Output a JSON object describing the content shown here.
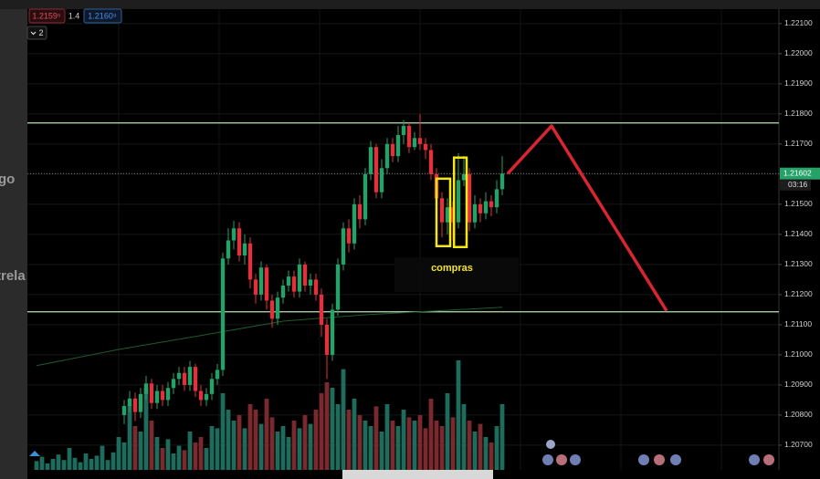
{
  "side_texts": [
    "go",
    "trela"
  ],
  "header": {
    "bid": "1.2159⁵",
    "spread": "1.4",
    "ask": "1.2160⁹",
    "interval": "2"
  },
  "chart_data": {
    "type": "candlestick",
    "xlim": [
      -1.667,
      135.5
    ],
    "ylim": [
      1.20618,
      1.22148
    ],
    "yticks": [
      {
        "value": 1.221,
        "label": "1.22100"
      },
      {
        "value": 1.22,
        "label": "1.22000"
      },
      {
        "value": 1.219,
        "label": "1.21900"
      },
      {
        "value": 1.218,
        "label": "1.21800"
      },
      {
        "value": 1.217,
        "label": "1.21700"
      },
      {
        "value": 1.216,
        "label": "1.21600"
      },
      {
        "value": 1.215,
        "label": "1.21500"
      },
      {
        "value": 1.214,
        "label": "1.21400"
      },
      {
        "value": 1.213,
        "label": "1.21300"
      },
      {
        "value": 1.212,
        "label": "1.21200"
      },
      {
        "value": 1.211,
        "label": "1.21100"
      },
      {
        "value": 1.21,
        "label": "1.21000"
      },
      {
        "value": 1.209,
        "label": "1.20900"
      },
      {
        "value": 1.208,
        "label": "1.20800"
      },
      {
        "value": 1.207,
        "label": "1.20700"
      }
    ],
    "grid": true,
    "up_color": "#26a269",
    "down_color": "#e0323c",
    "open": [
      null,
      null,
      null,
      null,
      null,
      null,
      null,
      null,
      null,
      null,
      null,
      null,
      null,
      null,
      null,
      null,
      1.208,
      1.2083,
      1.20855,
      1.2081,
      1.2087,
      1.20905,
      1.2084,
      1.2088,
      1.2085,
      1.2089,
      1.2092,
      1.2094,
      1.209,
      1.2096,
      1.2088,
      1.2085,
      1.2087,
      1.2092,
      1.2095,
      1.2132,
      1.2138,
      1.2142,
      1.2133,
      1.2137,
      1.2125,
      1.212,
      1.2129,
      1.2118,
      1.2112,
      1.2119,
      1.2123,
      1.2126,
      1.2121,
      1.213,
      1.2123,
      1.2125,
      1.212,
      1.211,
      1.21,
      1.2115,
      1.213,
      1.2142,
      1.2137,
      1.215,
      1.2145,
      1.216,
      1.2169,
      1.2154,
      1.2162,
      1.217,
      1.2166,
      1.2173,
      1.2176,
      1.2169,
      1.2172,
      1.217,
      1.2168,
      1.216,
      1.2152,
      1.2144,
      1.2149,
      1.2144,
      1.2158,
      1.216,
      1.2144,
      1.215,
      1.2147,
      1.2151,
      1.2149,
      1.2155
    ],
    "high": [
      null,
      null,
      null,
      null,
      null,
      null,
      null,
      null,
      null,
      null,
      null,
      null,
      null,
      null,
      null,
      null,
      1.2085,
      1.2088,
      1.20875,
      1.2089,
      1.2093,
      1.2092,
      1.209,
      1.209,
      1.2091,
      1.2094,
      1.2096,
      1.2096,
      1.2098,
      1.2097,
      1.209,
      1.2089,
      1.2094,
      1.2097,
      1.2134,
      1.2142,
      1.21445,
      1.2144,
      1.214,
      1.2139,
      1.2127,
      1.2131,
      1.213,
      1.212,
      1.2121,
      1.2125,
      1.2128,
      1.2128,
      1.2132,
      1.2131,
      1.2127,
      1.2127,
      1.2122,
      1.2112,
      1.2117,
      1.2132,
      1.2144,
      1.2145,
      1.2152,
      1.2153,
      1.2162,
      1.2171,
      1.217,
      1.2165,
      1.2172,
      1.2172,
      1.2176,
      1.2178,
      1.2177,
      1.2174,
      1.218,
      1.2172,
      1.217,
      1.2162,
      1.2154,
      1.2152,
      1.2151,
      1.2167,
      1.2166,
      1.2162,
      1.2153,
      1.2152,
      1.2154,
      1.2153,
      1.2158,
      1.2166
    ],
    "low": [
      null,
      null,
      null,
      null,
      null,
      null,
      null,
      null,
      null,
      null,
      null,
      null,
      null,
      null,
      null,
      null,
      1.2077,
      1.2081,
      1.2078,
      1.2079,
      1.2085,
      1.2082,
      1.2082,
      1.2083,
      1.2083,
      1.2087,
      1.209,
      1.2088,
      1.2088,
      1.2086,
      1.2083,
      1.2083,
      1.2085,
      1.209,
      1.2093,
      1.213,
      1.2135,
      1.2131,
      1.213,
      1.2122,
      1.2117,
      1.2118,
      1.2115,
      1.2109,
      1.211,
      1.2117,
      1.2121,
      1.2119,
      1.2119,
      1.2121,
      1.212,
      1.2118,
      1.2106,
      1.2092,
      1.2098,
      1.2113,
      1.2128,
      1.2134,
      1.2135,
      1.2142,
      1.2143,
      1.2158,
      1.2152,
      1.2152,
      1.216,
      1.2164,
      1.2164,
      1.217,
      1.2167,
      1.2168,
      1.2168,
      1.2165,
      1.2158,
      1.2147,
      1.2139,
      1.214,
      1.2138,
      1.2142,
      1.2156,
      1.2141,
      1.2142,
      1.2144,
      1.2145,
      1.2146,
      1.2147,
      1.2153
    ],
    "close": [
      null,
      null,
      null,
      null,
      null,
      null,
      null,
      null,
      null,
      null,
      null,
      null,
      null,
      null,
      null,
      null,
      1.2083,
      1.20855,
      1.2081,
      1.2087,
      1.20905,
      1.2084,
      1.2088,
      1.2085,
      1.2089,
      1.2092,
      1.2094,
      1.209,
      1.2096,
      1.2088,
      1.2085,
      1.2087,
      1.2092,
      1.2095,
      1.2132,
      1.2138,
      1.2142,
      1.2133,
      1.2137,
      1.2125,
      1.212,
      1.2129,
      1.2118,
      1.2112,
      1.2119,
      1.2123,
      1.2126,
      1.2121,
      1.213,
      1.2123,
      1.2125,
      1.212,
      1.211,
      1.21,
      1.2115,
      1.213,
      1.2142,
      1.2137,
      1.215,
      1.2145,
      1.216,
      1.2169,
      1.2154,
      1.2162,
      1.217,
      1.2166,
      1.2173,
      1.2176,
      1.2169,
      1.2172,
      1.217,
      1.2168,
      1.216,
      1.2152,
      1.2144,
      1.2149,
      1.2144,
      1.2158,
      1.216,
      1.2144,
      1.215,
      1.2147,
      1.2151,
      1.2149,
      1.2155,
      1.21602
    ],
    "volume": {
      "vlim": [
        0,
        100
      ],
      "values": [
        8,
        12,
        6,
        10,
        14,
        9,
        20,
        11,
        7,
        15,
        10,
        13,
        22,
        9,
        16,
        30,
        25,
        60,
        40,
        35,
        75,
        45,
        30,
        20,
        28,
        15,
        22,
        18,
        35,
        25,
        30,
        20,
        40,
        38,
        70,
        55,
        45,
        50,
        38,
        60,
        55,
        42,
        65,
        48,
        35,
        40,
        30,
        45,
        38,
        50,
        42,
        55,
        70,
        80,
        75,
        60,
        92,
        55,
        65,
        50,
        45,
        40,
        58,
        35,
        60,
        45,
        40,
        55,
        48,
        45,
        50,
        38,
        65,
        45,
        40,
        70,
        48,
        100,
        60,
        45,
        35,
        42,
        30,
        25,
        40,
        60
      ]
    },
    "moving_average": {
      "color": "#1f5a2e",
      "x": [
        0,
        15,
        30,
        45,
        60,
        85
      ],
      "values": [
        1.20964,
        1.21018,
        1.21064,
        1.21112,
        1.21133,
        1.21158
      ]
    },
    "levels": [
      {
        "value": 1.2177,
        "color": "#b9e3b4"
      },
      {
        "value": 1.21143,
        "color": "#b9e3b4"
      }
    ],
    "last_price": 1.21602,
    "countdown": "03:16",
    "projection": {
      "color": "#d7262f",
      "x": [
        86,
        94,
        115
      ],
      "values": [
        1.21602,
        1.2176,
        1.21146
      ]
    },
    "boxes": [
      {
        "x": [
          73,
          75.5
        ],
        "y": [
          1.21585,
          1.21361
        ]
      },
      {
        "x": [
          76.2,
          78.5
        ],
        "y": [
          1.21655,
          1.21358
        ]
      }
    ],
    "box_color": "#f5e616",
    "annotation": "compras"
  }
}
